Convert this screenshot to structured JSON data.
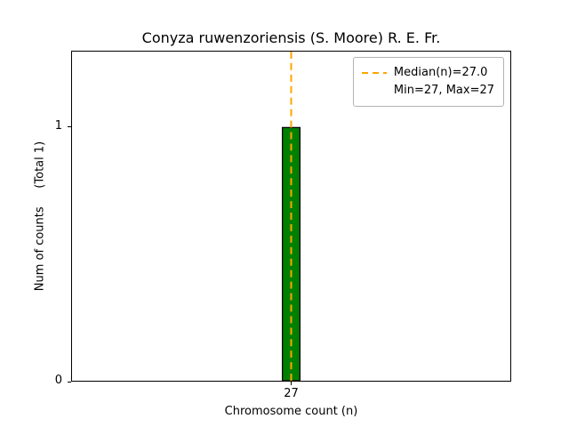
{
  "chart_data": {
    "type": "bar",
    "title": "Conyza ruwenzoriensis (S. Moore) R. E. Fr.",
    "xlabel": "Chromosome count (n)",
    "ylabel": "Num of counts     (Total 1)",
    "x": [
      27
    ],
    "values": [
      1
    ],
    "bar_width": 0.8,
    "bar_color": "#008000",
    "bar_edge_color": "#000000",
    "median": 27.0,
    "min": 27,
    "max": 27,
    "median_line_color": "#FFA500",
    "xlim": [
      17,
      37
    ],
    "ylim": [
      0,
      1.3
    ],
    "xticks": [
      27
    ],
    "yticks": [
      0,
      1
    ],
    "grid": false,
    "legend": {
      "position": "upper right",
      "entries": [
        {
          "marker": "dashed-line",
          "color": "#FFA500",
          "label": "Median(n)=27.0"
        },
        {
          "marker": "none",
          "color": "",
          "label": "Min=27, Max=27"
        }
      ]
    }
  }
}
